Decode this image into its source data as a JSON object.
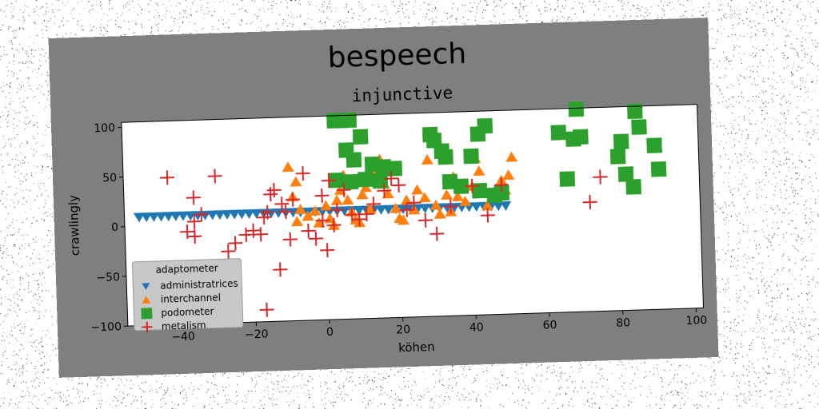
{
  "figure": {
    "suptitle": "bespeech",
    "colors": {
      "figure_bg": "#7f7f7f",
      "axes_bg": "#ffffff",
      "text": "#000000",
      "legend_bg": "#c8c8c8"
    }
  },
  "chart_data": {
    "type": "scatter",
    "title": "injunctive",
    "xlabel": "köhen",
    "ylabel": "crawlingly",
    "xlim": [
      -55,
      102
    ],
    "ylim": [
      -100,
      105
    ],
    "xticks": [
      -40,
      -20,
      0,
      20,
      40,
      60,
      80,
      100
    ],
    "yticks": [
      -100,
      -50,
      0,
      50,
      100
    ],
    "xtick_labels": [
      "−40",
      "−20",
      "0",
      "20",
      "40",
      "60",
      "80",
      "100"
    ],
    "ytick_labels": [
      "−100",
      "−50",
      "0",
      "50",
      "100"
    ],
    "grid": false,
    "legend": {
      "title": "adaptometer",
      "location": "lower-left"
    },
    "series": [
      {
        "name": "administratrices",
        "marker": "triangle-down",
        "color": "#1f77b4",
        "points": [
          [
            -51,
            9
          ],
          [
            -49,
            9
          ],
          [
            -47,
            9
          ],
          [
            -45,
            9
          ],
          [
            -43,
            9
          ],
          [
            -41,
            9
          ],
          [
            -39,
            9
          ],
          [
            -37,
            9
          ],
          [
            -35,
            9
          ],
          [
            -33,
            9
          ],
          [
            -31,
            9
          ],
          [
            -29,
            9
          ],
          [
            -27,
            9
          ],
          [
            -25,
            9
          ],
          [
            -23,
            9
          ],
          [
            -21,
            9
          ],
          [
            -19,
            9
          ],
          [
            -17,
            9
          ],
          [
            -15,
            9
          ],
          [
            -13,
            9
          ],
          [
            -11,
            9
          ],
          [
            -9,
            9
          ],
          [
            -7,
            9
          ],
          [
            -5,
            9
          ],
          [
            -3,
            9
          ],
          [
            -1,
            9
          ],
          [
            1,
            9
          ],
          [
            3,
            9
          ],
          [
            5,
            9
          ],
          [
            7,
            9
          ],
          [
            9,
            9
          ],
          [
            11,
            9
          ],
          [
            13,
            9
          ],
          [
            15,
            9
          ],
          [
            17,
            9
          ],
          [
            19,
            9
          ],
          [
            21,
            9
          ],
          [
            23,
            9
          ],
          [
            25,
            9
          ],
          [
            27,
            9
          ],
          [
            29,
            9
          ],
          [
            31,
            9
          ],
          [
            33,
            9
          ],
          [
            35,
            9
          ],
          [
            37,
            9
          ],
          [
            39,
            9
          ],
          [
            41,
            9
          ],
          [
            43,
            9
          ],
          [
            45,
            9
          ],
          [
            47,
            9
          ],
          [
            49,
            9
          ]
        ]
      },
      {
        "name": "interchannel",
        "marker": "triangle-up",
        "color": "#ff7f0e",
        "points": [
          [
            -10,
            55
          ],
          [
            -8,
            40
          ],
          [
            -9,
            25
          ],
          [
            -7,
            12
          ],
          [
            -8,
            0
          ],
          [
            -5,
            5
          ],
          [
            -3,
            10
          ],
          [
            -2,
            -2
          ],
          [
            0,
            15
          ],
          [
            1,
            2
          ],
          [
            2,
            -5
          ],
          [
            3,
            20
          ],
          [
            4,
            30
          ],
          [
            5,
            45
          ],
          [
            6,
            20
          ],
          [
            7,
            8
          ],
          [
            8,
            0
          ],
          [
            9,
            -3
          ],
          [
            10,
            25
          ],
          [
            11,
            32
          ],
          [
            12,
            10
          ],
          [
            14,
            48
          ],
          [
            15,
            60
          ],
          [
            16,
            35
          ],
          [
            17,
            25
          ],
          [
            19,
            10
          ],
          [
            20,
            0
          ],
          [
            21,
            -2
          ],
          [
            22,
            18
          ],
          [
            24,
            8
          ],
          [
            25,
            28
          ],
          [
            27,
            20
          ],
          [
            28,
            58
          ],
          [
            30,
            12
          ],
          [
            31,
            3
          ],
          [
            33,
            22
          ],
          [
            34,
            5
          ],
          [
            35,
            40
          ],
          [
            36,
            20
          ],
          [
            38,
            15
          ],
          [
            40,
            30
          ],
          [
            41,
            58
          ],
          [
            42,
            45
          ],
          [
            44,
            10
          ],
          [
            46,
            22
          ],
          [
            48,
            35
          ],
          [
            49,
            25
          ],
          [
            50,
            40
          ],
          [
            51,
            58
          ]
        ]
      },
      {
        "name": "podometer",
        "marker": "square",
        "color": "#2ca02c",
        "points": [
          [
            3,
            100
          ],
          [
            5,
            100
          ],
          [
            7,
            100
          ],
          [
            10,
            83
          ],
          [
            6,
            70
          ],
          [
            8,
            60
          ],
          [
            13,
            55
          ],
          [
            16,
            52
          ],
          [
            19,
            50
          ],
          [
            15,
            38
          ],
          [
            11,
            40
          ],
          [
            3,
            40
          ],
          [
            7,
            38
          ],
          [
            29,
            83
          ],
          [
            30,
            77
          ],
          [
            32,
            66
          ],
          [
            33,
            60
          ],
          [
            44,
            90
          ],
          [
            42,
            82
          ],
          [
            40,
            60
          ],
          [
            34,
            35
          ],
          [
            37,
            30
          ],
          [
            42,
            25
          ],
          [
            46,
            20
          ],
          [
            48,
            22
          ],
          [
            64,
            81
          ],
          [
            68,
            74
          ],
          [
            70,
            76
          ],
          [
            66,
            34
          ],
          [
            69,
            104
          ],
          [
            80,
            55
          ],
          [
            81,
            70
          ],
          [
            85,
            100
          ],
          [
            88,
            110
          ],
          [
            86,
            84
          ],
          [
            90,
            65
          ],
          [
            91,
            41
          ],
          [
            94,
            115
          ],
          [
            82,
            37
          ],
          [
            84,
            24
          ]
        ]
      },
      {
        "name": "metalism",
        "marker": "plus",
        "color": "#d62728",
        "points": [
          [
            -43,
            48
          ],
          [
            -36,
            27
          ],
          [
            -30,
            48
          ],
          [
            -34,
            10
          ],
          [
            -36,
            3
          ],
          [
            -38,
            -7
          ],
          [
            -36,
            -12
          ],
          [
            -27,
            -28
          ],
          [
            -25,
            -20
          ],
          [
            -22,
            -12
          ],
          [
            -20,
            -8
          ],
          [
            -18,
            -12
          ],
          [
            -17,
            5
          ],
          [
            -16,
            10
          ],
          [
            -15,
            28
          ],
          [
            -14,
            32
          ],
          [
            -12,
            18
          ],
          [
            -11,
            10
          ],
          [
            -10,
            -18
          ],
          [
            -9,
            22
          ],
          [
            -13,
            -48
          ],
          [
            -17,
            -88
          ],
          [
            -5,
            -10
          ],
          [
            -3,
            -18
          ],
          [
            -1,
            25
          ],
          [
            0,
            -30
          ],
          [
            2,
            -5
          ],
          [
            3,
            10
          ],
          [
            5,
            30
          ],
          [
            7,
            5
          ],
          [
            9,
            0
          ],
          [
            11,
            5
          ],
          [
            13,
            15
          ],
          [
            16,
            28
          ],
          [
            18,
            40
          ],
          [
            20,
            33
          ],
          [
            22,
            8
          ],
          [
            24,
            15
          ],
          [
            27,
            -3
          ],
          [
            30,
            -17
          ],
          [
            34,
            10
          ],
          [
            40,
            30
          ],
          [
            44,
            0
          ],
          [
            48,
            30
          ],
          [
            72,
            10
          ],
          [
            75,
            35
          ],
          [
            -1,
            0
          ],
          [
            -6,
            48
          ],
          [
            1,
            40
          ]
        ]
      }
    ]
  }
}
